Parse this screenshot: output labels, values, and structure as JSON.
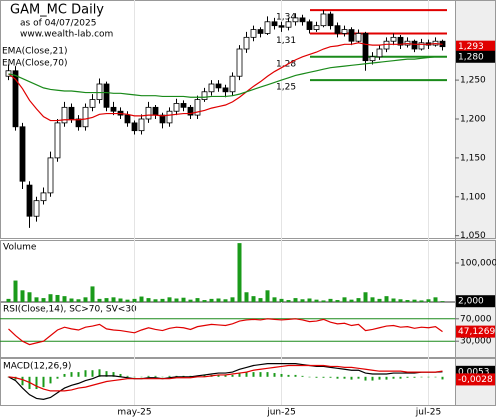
{
  "chart_data": [
    {
      "type": "candlestick",
      "title": "GAM_MC Daily",
      "subtitle": "as of 04/07/2025",
      "source": "www.wealth-lab.com",
      "categories": [
        null,
        null,
        null,
        null,
        null,
        null,
        null,
        null,
        null,
        null,
        null,
        null,
        null,
        null,
        null,
        null,
        null,
        null,
        "may-25",
        null,
        null,
        null,
        null,
        null,
        null,
        null,
        null,
        null,
        null,
        null,
        null,
        null,
        null,
        null,
        null,
        null,
        null,
        null,
        null,
        "jun-25",
        null,
        null,
        null,
        null,
        null,
        null,
        null,
        null,
        null,
        null,
        null,
        null,
        null,
        null,
        null,
        null,
        null,
        null,
        null,
        null,
        "jul-25",
        null,
        null
      ],
      "open": [
        1.255,
        1.262,
        1.19,
        1.115,
        1.075,
        1.095,
        1.105,
        1.15,
        1.195,
        1.215,
        1.2,
        1.19,
        1.215,
        1.225,
        1.245,
        1.215,
        1.21,
        1.205,
        1.195,
        1.185,
        1.2,
        1.215,
        1.205,
        1.195,
        1.21,
        1.22,
        1.215,
        1.205,
        1.225,
        1.235,
        1.245,
        1.24,
        1.235,
        1.255,
        1.29,
        1.305,
        1.315,
        1.31,
        1.325,
        1.32,
        1.318,
        1.325,
        1.33,
        1.325,
        1.315,
        1.32,
        1.335,
        1.32,
        1.31,
        1.315,
        1.3,
        1.31,
        1.275,
        1.28,
        1.29,
        1.3,
        1.305,
        1.295,
        1.3,
        1.29,
        1.298,
        1.295,
        1.3
      ],
      "high": [
        1.27,
        1.268,
        1.195,
        1.12,
        1.1,
        1.112,
        1.158,
        1.2,
        1.222,
        1.22,
        1.205,
        1.22,
        1.232,
        1.252,
        1.248,
        1.222,
        1.215,
        1.21,
        1.198,
        1.206,
        1.222,
        1.218,
        1.208,
        1.215,
        1.226,
        1.224,
        1.218,
        1.23,
        1.24,
        1.25,
        1.25,
        1.244,
        1.26,
        1.295,
        1.312,
        1.32,
        1.318,
        1.332,
        1.33,
        1.325,
        1.33,
        1.336,
        1.334,
        1.328,
        1.325,
        1.34,
        1.338,
        1.324,
        1.32,
        1.318,
        1.315,
        1.312,
        1.286,
        1.295,
        1.305,
        1.31,
        1.308,
        1.305,
        1.302,
        1.303,
        1.302,
        1.305,
        1.302
      ],
      "low": [
        1.25,
        1.185,
        1.11,
        1.06,
        1.068,
        1.09,
        1.1,
        1.145,
        1.19,
        1.195,
        1.185,
        1.185,
        1.21,
        1.22,
        1.21,
        1.205,
        1.2,
        1.19,
        1.18,
        1.18,
        1.195,
        1.2,
        1.188,
        1.19,
        1.205,
        1.21,
        1.2,
        1.2,
        1.222,
        1.23,
        1.235,
        1.228,
        1.23,
        1.25,
        1.285,
        1.3,
        1.305,
        1.308,
        1.315,
        1.312,
        1.314,
        1.32,
        1.32,
        1.31,
        1.312,
        1.318,
        1.315,
        1.305,
        1.306,
        1.295,
        1.298,
        1.262,
        1.27,
        1.276,
        1.286,
        1.295,
        1.29,
        1.292,
        1.286,
        1.288,
        1.29,
        1.293,
        1.288
      ],
      "close": [
        1.262,
        1.19,
        1.12,
        1.075,
        1.095,
        1.105,
        1.15,
        1.195,
        1.215,
        1.2,
        1.19,
        1.215,
        1.225,
        1.245,
        1.215,
        1.21,
        1.205,
        1.195,
        1.185,
        1.2,
        1.215,
        1.205,
        1.195,
        1.21,
        1.22,
        1.215,
        1.205,
        1.225,
        1.235,
        1.245,
        1.24,
        1.235,
        1.255,
        1.29,
        1.305,
        1.315,
        1.31,
        1.325,
        1.32,
        1.318,
        1.325,
        1.33,
        1.325,
        1.315,
        1.32,
        1.335,
        1.32,
        1.31,
        1.315,
        1.3,
        1.31,
        1.275,
        1.28,
        1.29,
        1.3,
        1.305,
        1.295,
        1.3,
        1.29,
        1.298,
        1.295,
        1.3,
        1.293
      ],
      "up_color": "#ffffff",
      "down_color": "#000000",
      "series": [
        {
          "name": "EMA(Close,21)",
          "color": "#e00000",
          "values": [
            1.258,
            1.251,
            1.239,
            1.224,
            1.213,
            1.203,
            1.198,
            1.198,
            1.199,
            1.199,
            1.199,
            1.2,
            1.202,
            1.206,
            1.207,
            1.207,
            1.207,
            1.206,
            1.204,
            1.204,
            1.205,
            1.205,
            1.204,
            1.205,
            1.206,
            1.207,
            1.207,
            1.209,
            1.211,
            1.214,
            1.216,
            1.218,
            1.222,
            1.228,
            1.235,
            1.242,
            1.248,
            1.255,
            1.261,
            1.266,
            1.271,
            1.276,
            1.28,
            1.283,
            1.286,
            1.29,
            1.293,
            1.294,
            1.296,
            1.296,
            1.298,
            1.296,
            1.295,
            1.295,
            1.296,
            1.296,
            1.296,
            1.297,
            1.296,
            1.296,
            1.296,
            1.297,
            1.296
          ]
        },
        {
          "name": "EMA(Close,70)",
          "color": "#1a8a1a",
          "values": [
            1.258,
            1.256,
            1.252,
            1.248,
            1.244,
            1.24,
            1.238,
            1.237,
            1.236,
            1.236,
            1.235,
            1.234,
            1.234,
            1.234,
            1.234,
            1.233,
            1.233,
            1.232,
            1.231,
            1.23,
            1.23,
            1.23,
            1.229,
            1.229,
            1.229,
            1.229,
            1.228,
            1.228,
            1.228,
            1.229,
            1.229,
            1.229,
            1.23,
            1.232,
            1.235,
            1.238,
            1.241,
            1.244,
            1.247,
            1.25,
            1.253,
            1.256,
            1.258,
            1.26,
            1.262,
            1.264,
            1.266,
            1.267,
            1.268,
            1.269,
            1.27,
            1.271,
            1.272,
            1.273,
            1.274,
            1.275,
            1.276,
            1.277,
            1.277,
            1.278,
            1.279,
            1.28,
            1.28
          ]
        }
      ],
      "ylim": [
        1.047,
        1.353
      ],
      "yticks": [
        {
          "value": 1.25,
          "label": "1,250"
        },
        {
          "value": 1.2,
          "label": "1,200"
        },
        {
          "value": 1.15,
          "label": "1,150"
        },
        {
          "value": 1.1,
          "label": "1,100"
        },
        {
          "value": 1.05,
          "label": "1,050"
        }
      ],
      "levels": [
        {
          "value": 1.34,
          "label": "1,34",
          "color": "#e00000"
        },
        {
          "value": 1.31,
          "label": "1,31",
          "color": "#e00000"
        },
        {
          "value": 1.28,
          "label": "1,28",
          "color": "#1a8a1a"
        },
        {
          "value": 1.25,
          "label": "1,25",
          "color": "#1a8a1a"
        }
      ],
      "last_labels": [
        {
          "value": 1.293,
          "label": "1,293",
          "color": "#e00000"
        },
        {
          "value": 1.28,
          "label": "1,280",
          "color": "#000000"
        }
      ]
    },
    {
      "type": "bar",
      "title": "Volume",
      "color": "#1a9a1a",
      "values": [
        8000,
        55000,
        30000,
        25000,
        12000,
        10000,
        20000,
        18000,
        15000,
        9000,
        7000,
        12000,
        40000,
        8000,
        10000,
        12000,
        9000,
        6000,
        8000,
        14000,
        10000,
        7000,
        8000,
        12000,
        9000,
        11000,
        6000,
        10000,
        5000,
        8000,
        9000,
        7000,
        12000,
        151000,
        25000,
        15000,
        10000,
        30000,
        12000,
        8000,
        5000,
        10000,
        7000,
        9000,
        6000,
        4000,
        8000,
        5000,
        12000,
        6000,
        10000,
        25000,
        12000,
        8000,
        15000,
        9000,
        7000,
        5000,
        6000,
        4000,
        7000,
        12000,
        2000
      ],
      "ylim": [
        0,
        159000
      ],
      "yticks": [
        {
          "value": 100000,
          "label": "100,000"
        }
      ],
      "last_labels": [
        {
          "value": 2000,
          "label": "2,000",
          "color": "#000000"
        }
      ]
    },
    {
      "type": "line",
      "title": "RSI(Close,14), SC>70, SV<30",
      "color": "#e00000",
      "level_color": "#1a8a1a",
      "values": [
        52,
        40,
        30,
        24,
        27,
        30,
        40,
        50,
        55,
        52,
        50,
        55,
        57,
        60,
        52,
        50,
        49,
        47,
        45,
        50,
        54,
        51,
        49,
        53,
        55,
        54,
        51,
        56,
        58,
        60,
        59,
        58,
        61,
        66,
        68,
        69,
        68,
        70,
        69,
        68,
        69,
        70,
        68,
        65,
        66,
        69,
        64,
        61,
        62,
        58,
        60,
        49,
        51,
        54,
        57,
        58,
        55,
        56,
        53,
        55,
        54,
        56,
        47.1269
      ],
      "ylim": [
        0,
        100
      ],
      "yticks": [
        {
          "value": 70,
          "label": "70,000"
        },
        {
          "value": 30,
          "label": "30,000"
        }
      ],
      "last_labels": [
        {
          "value": 47.1269,
          "label": "47,1269",
          "color": "#e00000"
        }
      ]
    },
    {
      "type": "macd",
      "title": "MACD(12,26,9)",
      "series": [
        {
          "color": "#000000",
          "values": [
            0,
            -0.004,
            -0.012,
            -0.019,
            -0.023,
            -0.024,
            -0.022,
            -0.017,
            -0.012,
            -0.009,
            -0.007,
            -0.004,
            -0.002,
            0.001,
            0.001,
            0.001,
            0,
            -0.001,
            -0.002,
            -0.002,
            -0.001,
            -0.001,
            -0.002,
            -0.001,
            0,
            0,
            0,
            0.001,
            0.002,
            0.003,
            0.004,
            0.004,
            0.005,
            0.008,
            0.01,
            0.012,
            0.013,
            0.014,
            0.014,
            0.014,
            0.014,
            0.014,
            0.013,
            0.012,
            0.011,
            0.011,
            0.01,
            0.009,
            0.008,
            0.007,
            0.007,
            0.004,
            0.003,
            0.003,
            0.003,
            0.004,
            0.004,
            0.004,
            0.004,
            0.005,
            0.005,
            0.005,
            0.0053
          ]
        },
        {
          "color": "#e00000",
          "values": [
            0,
            -0.001,
            -0.003,
            -0.006,
            -0.01,
            -0.013,
            -0.015,
            -0.015,
            -0.015,
            -0.014,
            -0.012,
            -0.011,
            -0.009,
            -0.007,
            -0.005,
            -0.004,
            -0.003,
            -0.002,
            -0.002,
            -0.002,
            -0.002,
            -0.002,
            -0.002,
            -0.002,
            -0.001,
            -0.001,
            -0.001,
            0,
            0,
            0.001,
            0.002,
            0.002,
            0.003,
            0.004,
            0.005,
            0.007,
            0.008,
            0.009,
            0.01,
            0.011,
            0.012,
            0.012,
            0.012,
            0.012,
            0.012,
            0.012,
            0.011,
            0.011,
            0.01,
            0.01,
            0.009,
            0.008,
            0.007,
            0.006,
            0.006,
            0.006,
            0.006,
            0.005,
            0.005,
            0.005,
            0.005,
            0.005,
            0.0061
          ]
        }
      ],
      "histogram": {
        "color": "#1a9a1a",
        "values": [
          0,
          -0.003,
          -0.009,
          -0.013,
          -0.013,
          -0.011,
          -0.007,
          -0.002,
          0.003,
          0.005,
          0.005,
          0.007,
          0.007,
          0.008,
          0.006,
          0.005,
          0.003,
          0.001,
          0,
          0,
          0.001,
          0.001,
          0,
          0.001,
          0.001,
          0.001,
          0.001,
          0.001,
          0.002,
          0.002,
          0.002,
          0.002,
          0.002,
          0.004,
          0.005,
          0.005,
          0.005,
          0.005,
          0.004,
          0.003,
          0.002,
          0.002,
          0.001,
          0,
          -0.001,
          -0.001,
          -0.001,
          -0.002,
          -0.002,
          -0.003,
          -0.002,
          -0.004,
          -0.004,
          -0.003,
          -0.003,
          -0.002,
          -0.002,
          -0.001,
          -0.001,
          0,
          0,
          0,
          -0.0028
        ]
      },
      "ylim": [
        -0.03,
        0.02
      ],
      "last_labels": [
        {
          "value": 0.0053,
          "label": "0,0053",
          "color": "#000000"
        },
        {
          "value": -0.0028,
          "label": "-0,0028",
          "color": "#e00000"
        }
      ]
    }
  ]
}
